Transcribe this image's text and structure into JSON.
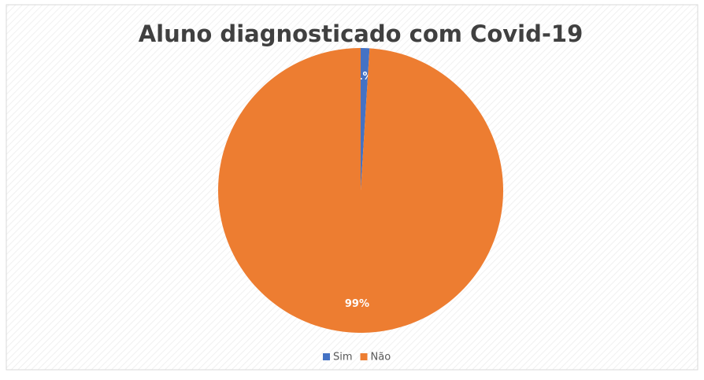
{
  "chart_data": {
    "type": "pie",
    "title": "Aluno diagnosticado com Covid-19",
    "categories": [
      "Sim",
      "Não"
    ],
    "values": [
      1,
      99
    ],
    "value_labels": [
      "1%",
      "99%"
    ],
    "colors": [
      "#4472c4",
      "#ed7d31"
    ],
    "legend": "bottom"
  }
}
